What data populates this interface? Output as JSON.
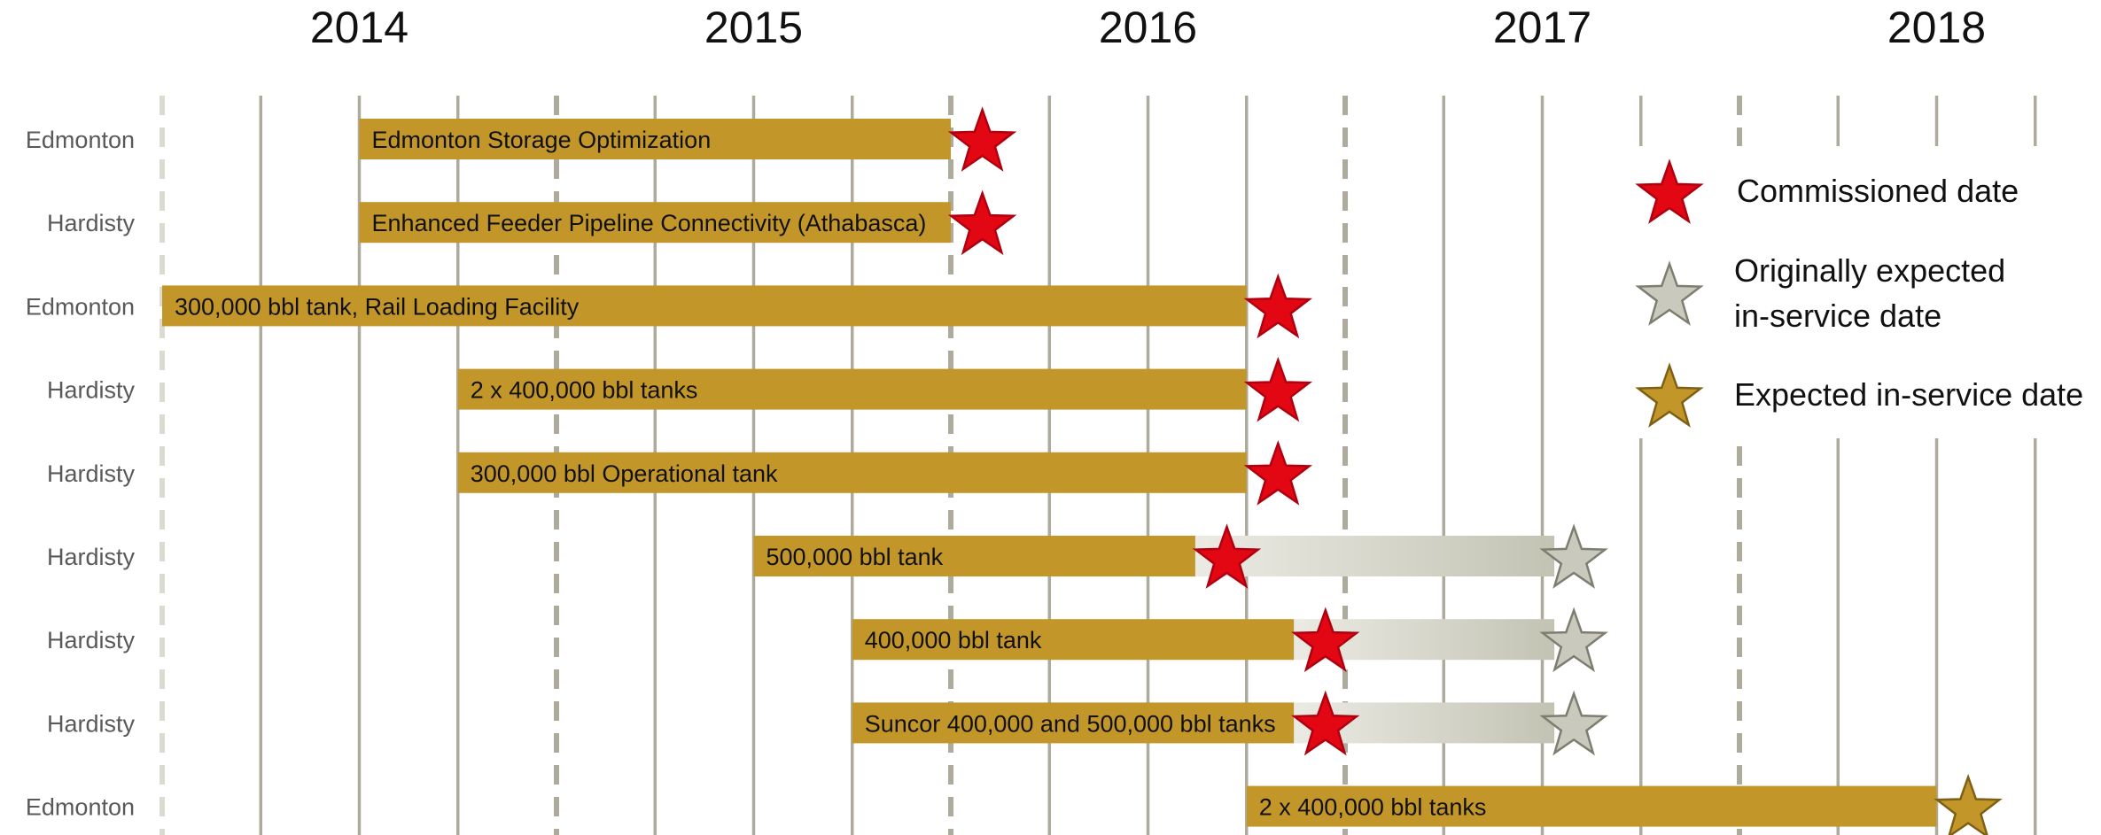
{
  "chart_data": {
    "type": "gantt",
    "x_axis": {
      "tick_labels": [
        "2014",
        "2015",
        "2016",
        "2017",
        "2018"
      ],
      "range": [
        2013.5,
        2018.25
      ],
      "grid": "vertical lines every quarter; dashed at mid-year"
    },
    "rows": [
      {
        "location": "Edmonton",
        "project": "Edmonton Storage Optimization",
        "start": 2014.0,
        "end": 2015.5,
        "commissioned": 2015.58,
        "originally_expected": null,
        "expected": null
      },
      {
        "location": "Hardisty",
        "project": "Enhanced Feeder Pipeline Connectivity (Athabasca)",
        "start": 2014.0,
        "end": 2015.5,
        "commissioned": 2015.58,
        "originally_expected": null,
        "expected": null
      },
      {
        "location": "Edmonton",
        "project": "300,000 bbl tank, Rail Loading Facility",
        "start": 2013.5,
        "end": 2016.25,
        "commissioned": 2016.33,
        "originally_expected": null,
        "expected": null
      },
      {
        "location": "Hardisty",
        "project": "2 x 400,000 bbl tanks",
        "start": 2014.25,
        "end": 2016.25,
        "commissioned": 2016.33,
        "originally_expected": null,
        "expected": null
      },
      {
        "location": "Hardisty",
        "project": "300,000 bbl Operational tank",
        "start": 2014.25,
        "end": 2016.25,
        "commissioned": 2016.33,
        "originally_expected": null,
        "expected": null
      },
      {
        "location": "Hardisty",
        "project": "500,000 bbl tank",
        "start": 2015.0,
        "end": 2016.12,
        "commissioned": 2016.2,
        "originally_expected": 2017.08,
        "expected": null
      },
      {
        "location": "Hardisty",
        "project": "400,000 bbl tank",
        "start": 2015.25,
        "end": 2016.37,
        "commissioned": 2016.45,
        "originally_expected": 2017.08,
        "expected": null
      },
      {
        "location": "Hardisty",
        "project": "Suncor 400,000 and 500,000 bbl tanks",
        "start": 2015.25,
        "end": 2016.37,
        "commissioned": 2016.45,
        "originally_expected": 2017.08,
        "expected": null
      },
      {
        "location": "Edmonton",
        "project": "2 x 400,000 bbl tanks",
        "start": 2016.25,
        "end": 2018.0,
        "commissioned": null,
        "originally_expected": null,
        "expected": 2018.08
      }
    ],
    "legend": [
      {
        "key": "commissioned",
        "lines": [
          "Commissioned date"
        ],
        "color": "#e30613"
      },
      {
        "key": "originally_expected",
        "lines": [
          "Originally expected",
          "in-service date"
        ],
        "color": "#c9c9bd"
      },
      {
        "key": "expected",
        "lines": [
          "Expected in-service date"
        ],
        "color": "#c3962a"
      }
    ],
    "legend_position": "right",
    "colors": {
      "bar": "#c3962a",
      "gridline": "#aeab9c",
      "delay_gradient_start": "#ebebe4",
      "delay_gradient_end": "#c3c3b4"
    }
  }
}
